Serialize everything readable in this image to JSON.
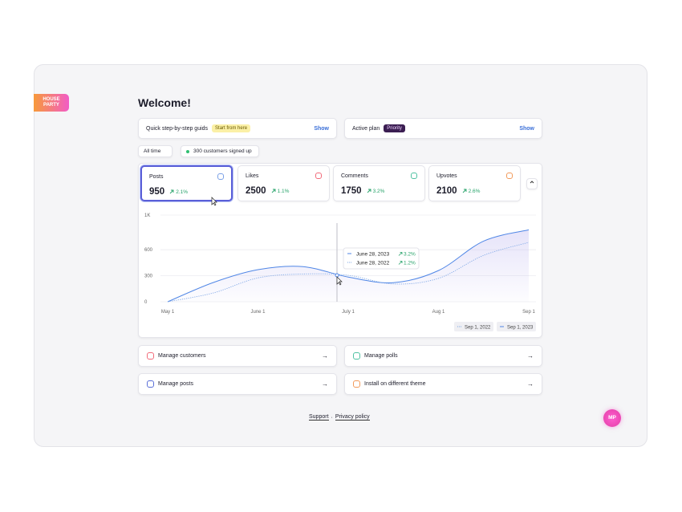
{
  "logo": "HOUSE PARTY",
  "header": {
    "title": "Welcome!"
  },
  "guide": {
    "label": "Quick step-by-step guids",
    "badge": "Start from here",
    "action": "Show"
  },
  "plan": {
    "label": "Active plan",
    "badge": "Priority",
    "action": "Show"
  },
  "filters": {
    "period": "All time",
    "signups": "300 customers signed up"
  },
  "stats": [
    {
      "label": "Posts",
      "value": 950,
      "change": "2.1%"
    },
    {
      "label": "Likes",
      "value": 2500,
      "change": "1.1%"
    },
    {
      "label": "Comments",
      "value": 1750,
      "change": "3.2%"
    },
    {
      "label": "Upvotes",
      "value": 2100,
      "change": "2.6%"
    }
  ],
  "chart": {
    "type": "line",
    "categories": [
      "May 1",
      null,
      "June 1",
      null,
      "July 1",
      null,
      "Aug 1",
      null,
      "Sep 1"
    ],
    "series": [
      {
        "name": "Sep 1, 2023",
        "color": "#4f86e6",
        "values": [
          0,
          220,
          370,
          405,
          285,
          220,
          360,
          700,
          830
        ]
      },
      {
        "name": "Sep 1, 2022",
        "color": "#7ea7e6",
        "values": [
          0,
          100,
          275,
          320,
          305,
          205,
          270,
          535,
          685
        ]
      }
    ],
    "ylim": [
      0,
      1000
    ],
    "yticks": [
      0,
      300,
      600,
      {
        "value": 1000,
        "label": "1K"
      }
    ],
    "grid": true
  },
  "tooltip": [
    {
      "date": "June 28, 2023",
      "change": "3.2%"
    },
    {
      "date": "June 28, 2022",
      "change": "1.2%"
    }
  ],
  "actions": [
    "Manage customers",
    "Manage polls",
    "Manage posts",
    "Install on different theme"
  ],
  "footer": {
    "support": "Support",
    "separator": "·",
    "privacy": "Privacy policy"
  },
  "avatar": "MP"
}
